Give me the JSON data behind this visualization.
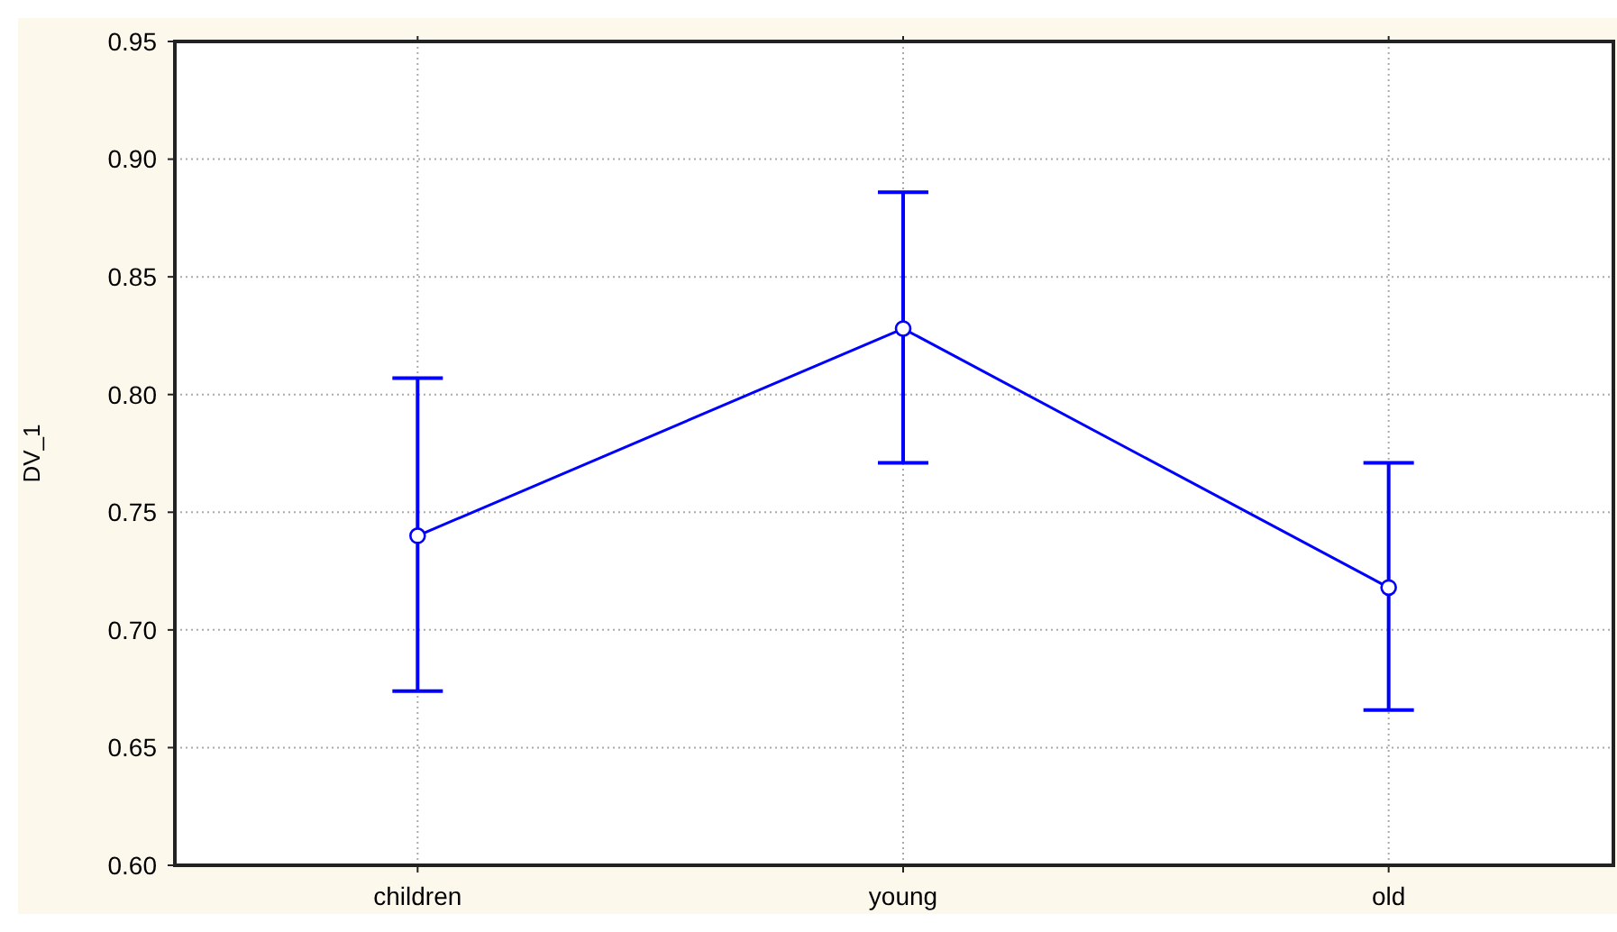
{
  "chart_data": {
    "type": "line",
    "ylabel": "DV_1",
    "categories": [
      "children",
      "young",
      "old"
    ],
    "series": [
      {
        "color": "#0000ff",
        "values": [
          0.74,
          0.828,
          0.718
        ],
        "errors": [
          [
            0.674,
            0.807
          ],
          [
            0.771,
            0.886
          ],
          [
            0.666,
            0.771
          ]
        ]
      }
    ],
    "ylim": [
      0.6,
      0.95
    ],
    "yticks": [
      {
        "value": 0.6,
        "label": "0.60"
      },
      {
        "value": 0.65,
        "label": "0.65"
      },
      {
        "value": 0.7,
        "label": "0.70"
      },
      {
        "value": 0.75,
        "label": "0.75"
      },
      {
        "value": 0.8,
        "label": "0.80"
      },
      {
        "value": 0.85,
        "label": "0.85"
      },
      {
        "value": 0.9,
        "label": "0.90"
      },
      {
        "value": 0.95,
        "label": "0.95"
      }
    ],
    "grid": true,
    "marker": "circle",
    "line_style": "solid"
  }
}
